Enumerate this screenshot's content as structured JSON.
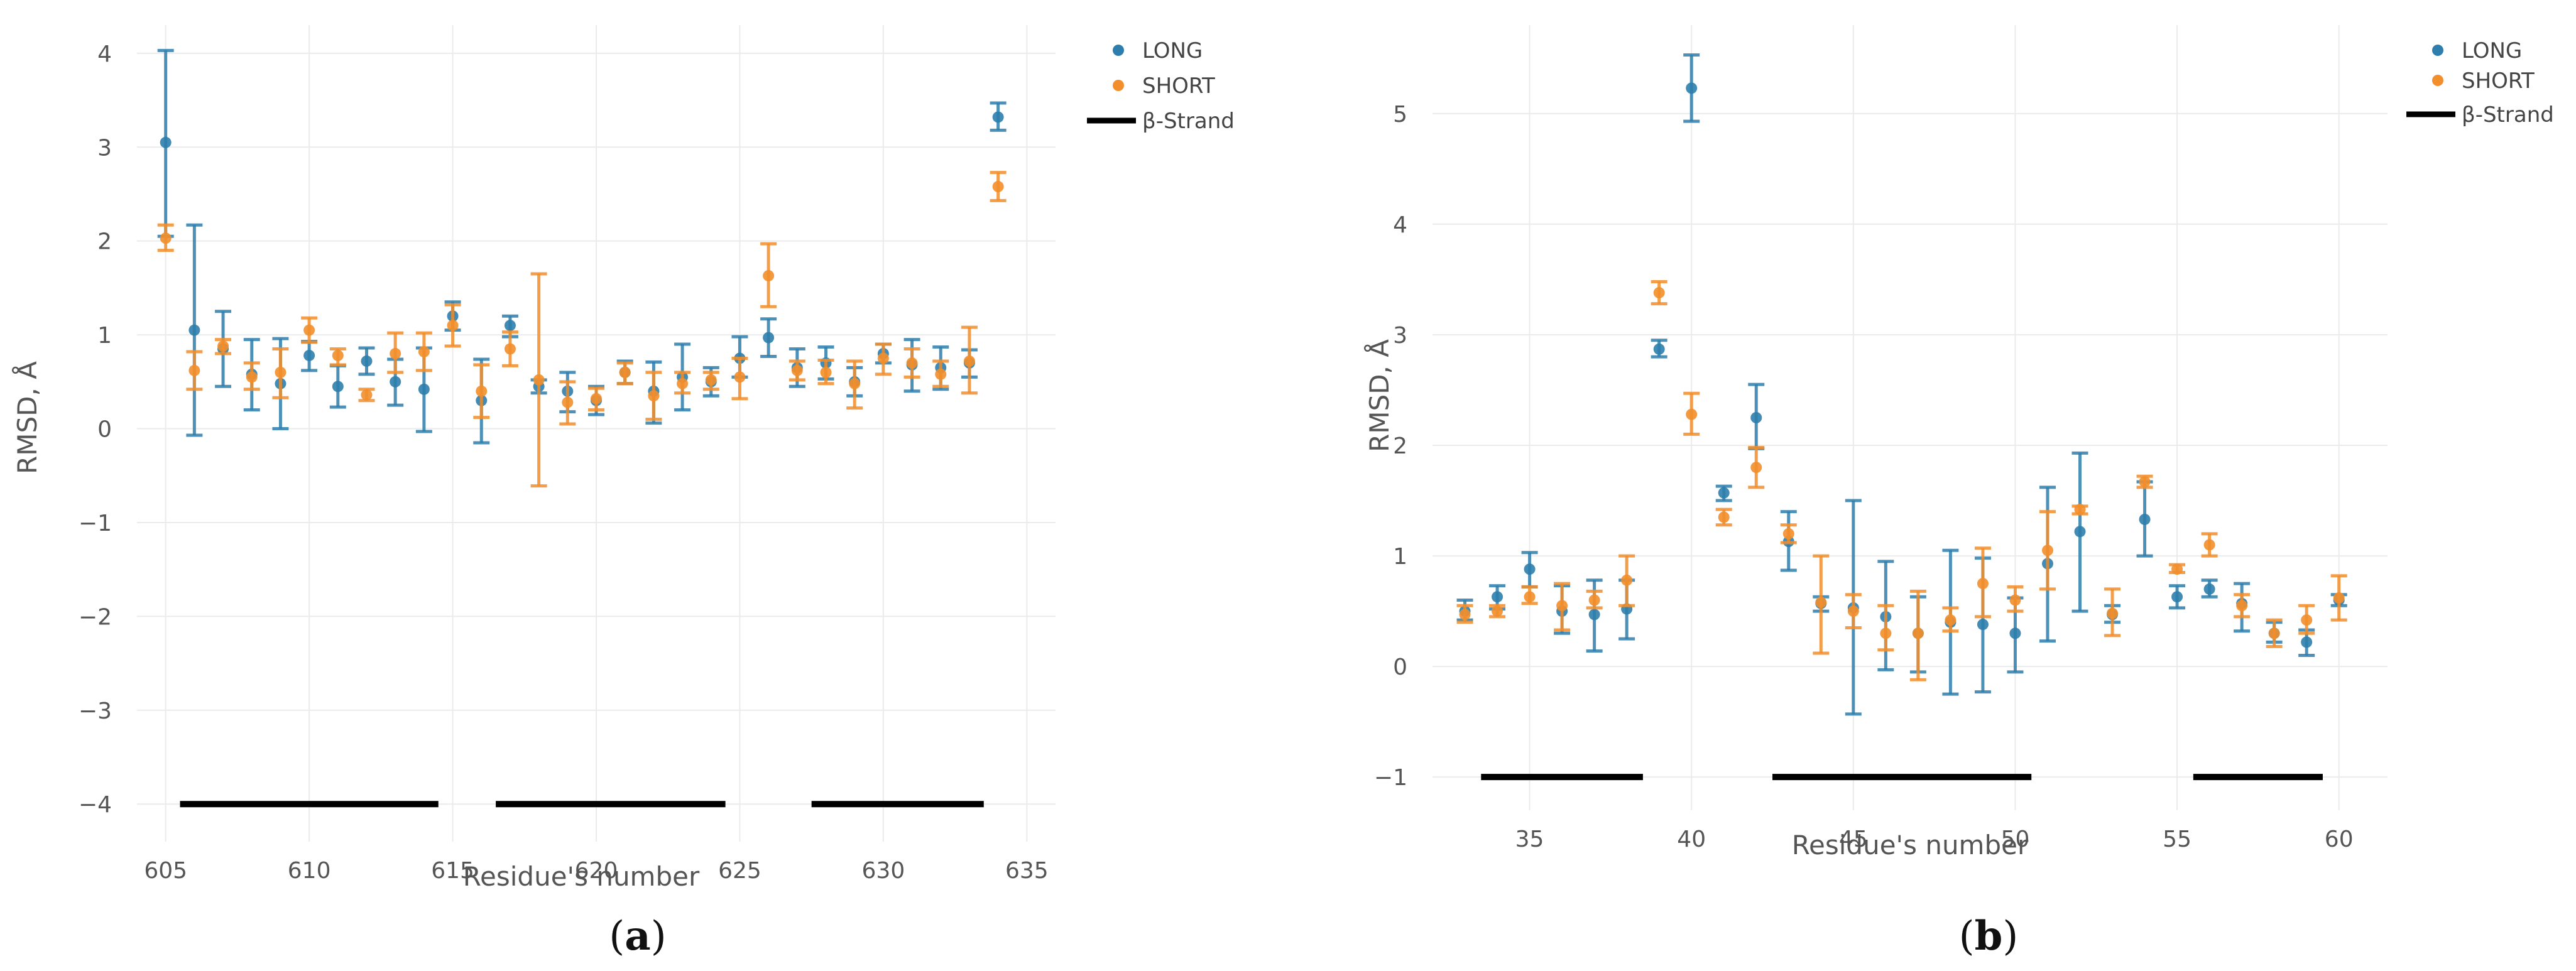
{
  "colors": {
    "long": "#2e7ead",
    "short": "#f28e2b",
    "strand": "#000000"
  },
  "chart_data": [
    {
      "type": "scatter",
      "panel_label": "(a)",
      "panel_letter": "a",
      "xlabel": "Residue's number",
      "ylabel": "RMSD, Å",
      "xlim": [
        604,
        636
      ],
      "ylim": [
        -4.4,
        4.3
      ],
      "xticks": [
        605,
        610,
        615,
        620,
        625,
        630,
        635
      ],
      "yticks": [
        -4,
        -3,
        -2,
        -1,
        0,
        1,
        2,
        3,
        4
      ],
      "legend": [
        "LONG",
        "SHORT",
        "β-Strand"
      ],
      "legend_position": "top-right-outside",
      "series": [
        {
          "name": "LONG",
          "points": [
            {
              "x": 605,
              "y": 3.05,
              "lo": 2.05,
              "hi": 4.03
            },
            {
              "x": 606,
              "y": 1.05,
              "lo": -0.07,
              "hi": 2.17
            },
            {
              "x": 607,
              "y": 0.85,
              "lo": 0.45,
              "hi": 1.25
            },
            {
              "x": 608,
              "y": 0.58,
              "lo": 0.2,
              "hi": 0.95
            },
            {
              "x": 609,
              "y": 0.48,
              "lo": 0.0,
              "hi": 0.96
            },
            {
              "x": 610,
              "y": 0.78,
              "lo": 0.62,
              "hi": 0.93
            },
            {
              "x": 611,
              "y": 0.45,
              "lo": 0.23,
              "hi": 0.67
            },
            {
              "x": 612,
              "y": 0.72,
              "lo": 0.58,
              "hi": 0.86
            },
            {
              "x": 613,
              "y": 0.5,
              "lo": 0.25,
              "hi": 0.74
            },
            {
              "x": 614,
              "y": 0.42,
              "lo": -0.03,
              "hi": 0.86
            },
            {
              "x": 615,
              "y": 1.2,
              "lo": 1.05,
              "hi": 1.35
            },
            {
              "x": 616,
              "y": 0.3,
              "lo": -0.15,
              "hi": 0.74
            },
            {
              "x": 617,
              "y": 1.1,
              "lo": 0.98,
              "hi": 1.2
            },
            {
              "x": 618,
              "y": 0.45,
              "lo": 0.38,
              "hi": 0.52
            },
            {
              "x": 619,
              "y": 0.4,
              "lo": 0.18,
              "hi": 0.6
            },
            {
              "x": 620,
              "y": 0.3,
              "lo": 0.15,
              "hi": 0.45
            },
            {
              "x": 621,
              "y": 0.6,
              "lo": 0.48,
              "hi": 0.72
            },
            {
              "x": 622,
              "y": 0.4,
              "lo": 0.06,
              "hi": 0.71
            },
            {
              "x": 623,
              "y": 0.55,
              "lo": 0.2,
              "hi": 0.9
            },
            {
              "x": 624,
              "y": 0.5,
              "lo": 0.35,
              "hi": 0.65
            },
            {
              "x": 625,
              "y": 0.75,
              "lo": 0.55,
              "hi": 0.98
            },
            {
              "x": 626,
              "y": 0.97,
              "lo": 0.77,
              "hi": 1.17
            },
            {
              "x": 627,
              "y": 0.65,
              "lo": 0.45,
              "hi": 0.85
            },
            {
              "x": 628,
              "y": 0.7,
              "lo": 0.53,
              "hi": 0.87
            },
            {
              "x": 629,
              "y": 0.5,
              "lo": 0.35,
              "hi": 0.65
            },
            {
              "x": 630,
              "y": 0.8,
              "lo": 0.7,
              "hi": 0.9
            },
            {
              "x": 631,
              "y": 0.68,
              "lo": 0.4,
              "hi": 0.95
            },
            {
              "x": 632,
              "y": 0.65,
              "lo": 0.42,
              "hi": 0.87
            },
            {
              "x": 633,
              "y": 0.7,
              "lo": 0.55,
              "hi": 0.84
            },
            {
              "x": 634,
              "y": 3.32,
              "lo": 3.18,
              "hi": 3.47
            }
          ]
        },
        {
          "name": "SHORT",
          "points": [
            {
              "x": 605,
              "y": 2.03,
              "lo": 1.9,
              "hi": 2.17
            },
            {
              "x": 606,
              "y": 0.62,
              "lo": 0.42,
              "hi": 0.82
            },
            {
              "x": 607,
              "y": 0.88,
              "lo": 0.8,
              "hi": 0.95
            },
            {
              "x": 608,
              "y": 0.55,
              "lo": 0.42,
              "hi": 0.7
            },
            {
              "x": 609,
              "y": 0.6,
              "lo": 0.33,
              "hi": 0.85
            },
            {
              "x": 610,
              "y": 1.05,
              "lo": 0.92,
              "hi": 1.18
            },
            {
              "x": 611,
              "y": 0.78,
              "lo": 0.68,
              "hi": 0.85
            },
            {
              "x": 612,
              "y": 0.36,
              "lo": 0.3,
              "hi": 0.42
            },
            {
              "x": 613,
              "y": 0.8,
              "lo": 0.6,
              "hi": 1.02
            },
            {
              "x": 614,
              "y": 0.82,
              "lo": 0.62,
              "hi": 1.02
            },
            {
              "x": 615,
              "y": 1.1,
              "lo": 0.88,
              "hi": 1.32
            },
            {
              "x": 616,
              "y": 0.4,
              "lo": 0.12,
              "hi": 0.68
            },
            {
              "x": 617,
              "y": 0.85,
              "lo": 0.67,
              "hi": 1.03
            },
            {
              "x": 618,
              "y": 0.52,
              "lo": -0.61,
              "hi": 1.65
            },
            {
              "x": 619,
              "y": 0.28,
              "lo": 0.05,
              "hi": 0.5
            },
            {
              "x": 620,
              "y": 0.32,
              "lo": 0.2,
              "hi": 0.43
            },
            {
              "x": 621,
              "y": 0.6,
              "lo": 0.48,
              "hi": 0.7
            },
            {
              "x": 622,
              "y": 0.35,
              "lo": 0.1,
              "hi": 0.6
            },
            {
              "x": 623,
              "y": 0.48,
              "lo": 0.38,
              "hi": 0.6
            },
            {
              "x": 624,
              "y": 0.52,
              "lo": 0.42,
              "hi": 0.6
            },
            {
              "x": 625,
              "y": 0.55,
              "lo": 0.32,
              "hi": 0.75
            },
            {
              "x": 626,
              "y": 1.63,
              "lo": 1.3,
              "hi": 1.97
            },
            {
              "x": 627,
              "y": 0.62,
              "lo": 0.52,
              "hi": 0.72
            },
            {
              "x": 628,
              "y": 0.6,
              "lo": 0.48,
              "hi": 0.73
            },
            {
              "x": 629,
              "y": 0.48,
              "lo": 0.22,
              "hi": 0.72
            },
            {
              "x": 630,
              "y": 0.75,
              "lo": 0.58,
              "hi": 0.9
            },
            {
              "x": 631,
              "y": 0.7,
              "lo": 0.55,
              "hi": 0.85
            },
            {
              "x": 632,
              "y": 0.58,
              "lo": 0.45,
              "hi": 0.72
            },
            {
              "x": 633,
              "y": 0.72,
              "lo": 0.38,
              "hi": 1.08
            },
            {
              "x": 634,
              "y": 2.58,
              "lo": 2.43,
              "hi": 2.73
            }
          ]
        }
      ],
      "strands": [
        [
          605.5,
          614.5
        ],
        [
          616.5,
          624.5
        ],
        [
          627.5,
          633.5
        ]
      ],
      "strand_y": -4
    },
    {
      "type": "scatter",
      "panel_label": "(b)",
      "panel_letter": "b",
      "xlabel": "Residue's number",
      "ylabel": "RMSD, Å",
      "xlim": [
        32,
        61.5
      ],
      "ylim": [
        -1.3,
        5.8
      ],
      "xticks": [
        35,
        40,
        45,
        50,
        55,
        60
      ],
      "yticks": [
        -1,
        0,
        1,
        2,
        3,
        4,
        5
      ],
      "legend": [
        "LONG",
        "SHORT",
        "β-Strand"
      ],
      "legend_position": "top-right-outside",
      "series": [
        {
          "name": "LONG",
          "points": [
            {
              "x": 33,
              "y": 0.5,
              "lo": 0.42,
              "hi": 0.6
            },
            {
              "x": 34,
              "y": 0.63,
              "lo": 0.52,
              "hi": 0.73
            },
            {
              "x": 35,
              "y": 0.88,
              "lo": 0.72,
              "hi": 1.03
            },
            {
              "x": 36,
              "y": 0.5,
              "lo": 0.3,
              "hi": 0.73
            },
            {
              "x": 37,
              "y": 0.47,
              "lo": 0.14,
              "hi": 0.78
            },
            {
              "x": 38,
              "y": 0.52,
              "lo": 0.25,
              "hi": 0.78
            },
            {
              "x": 39,
              "y": 2.87,
              "lo": 2.8,
              "hi": 2.95
            },
            {
              "x": 40,
              "y": 5.23,
              "lo": 4.93,
              "hi": 5.53
            },
            {
              "x": 41,
              "y": 1.57,
              "lo": 1.5,
              "hi": 1.63
            },
            {
              "x": 42,
              "y": 2.25,
              "lo": 1.97,
              "hi": 2.55
            },
            {
              "x": 43,
              "y": 1.13,
              "lo": 0.87,
              "hi": 1.4
            },
            {
              "x": 44,
              "y": 0.57,
              "lo": 0.5,
              "hi": 0.63
            },
            {
              "x": 45,
              "y": 0.53,
              "lo": -0.43,
              "hi": 1.5
            },
            {
              "x": 46,
              "y": 0.45,
              "lo": -0.03,
              "hi": 0.95
            },
            {
              "x": 47,
              "y": 0.3,
              "lo": -0.05,
              "hi": 0.63
            },
            {
              "x": 48,
              "y": 0.4,
              "lo": -0.25,
              "hi": 1.05
            },
            {
              "x": 49,
              "y": 0.38,
              "lo": -0.23,
              "hi": 0.98
            },
            {
              "x": 50,
              "y": 0.3,
              "lo": -0.05,
              "hi": 0.62
            },
            {
              "x": 51,
              "y": 0.93,
              "lo": 0.23,
              "hi": 1.62
            },
            {
              "x": 52,
              "y": 1.22,
              "lo": 0.5,
              "hi": 1.93
            },
            {
              "x": 53,
              "y": 0.47,
              "lo": 0.4,
              "hi": 0.55
            },
            {
              "x": 54,
              "y": 1.33,
              "lo": 1.0,
              "hi": 1.67
            },
            {
              "x": 55,
              "y": 0.63,
              "lo": 0.53,
              "hi": 0.73
            },
            {
              "x": 56,
              "y": 0.7,
              "lo": 0.63,
              "hi": 0.78
            },
            {
              "x": 57,
              "y": 0.57,
              "lo": 0.32,
              "hi": 0.75
            },
            {
              "x": 58,
              "y": 0.3,
              "lo": 0.22,
              "hi": 0.4
            },
            {
              "x": 59,
              "y": 0.22,
              "lo": 0.1,
              "hi": 0.33
            },
            {
              "x": 60,
              "y": 0.6,
              "lo": 0.55,
              "hi": 0.65
            }
          ]
        },
        {
          "name": "SHORT",
          "points": [
            {
              "x": 33,
              "y": 0.47,
              "lo": 0.4,
              "hi": 0.55
            },
            {
              "x": 34,
              "y": 0.5,
              "lo": 0.45,
              "hi": 0.55
            },
            {
              "x": 35,
              "y": 0.63,
              "lo": 0.57,
              "hi": 0.72
            },
            {
              "x": 36,
              "y": 0.55,
              "lo": 0.33,
              "hi": 0.75
            },
            {
              "x": 37,
              "y": 0.6,
              "lo": 0.53,
              "hi": 0.68
            },
            {
              "x": 38,
              "y": 0.78,
              "lo": 0.55,
              "hi": 1.0
            },
            {
              "x": 39,
              "y": 3.38,
              "lo": 3.28,
              "hi": 3.48
            },
            {
              "x": 40,
              "y": 2.28,
              "lo": 2.1,
              "hi": 2.47
            },
            {
              "x": 41,
              "y": 1.35,
              "lo": 1.28,
              "hi": 1.42
            },
            {
              "x": 42,
              "y": 1.8,
              "lo": 1.62,
              "hi": 1.98
            },
            {
              "x": 43,
              "y": 1.2,
              "lo": 1.12,
              "hi": 1.28
            },
            {
              "x": 44,
              "y": 0.58,
              "lo": 0.12,
              "hi": 1.0
            },
            {
              "x": 45,
              "y": 0.5,
              "lo": 0.35,
              "hi": 0.65
            },
            {
              "x": 46,
              "y": 0.3,
              "lo": 0.15,
              "hi": 0.55
            },
            {
              "x": 47,
              "y": 0.3,
              "lo": -0.12,
              "hi": 0.68
            },
            {
              "x": 48,
              "y": 0.42,
              "lo": 0.32,
              "hi": 0.53
            },
            {
              "x": 49,
              "y": 0.75,
              "lo": 0.45,
              "hi": 1.07
            },
            {
              "x": 50,
              "y": 0.6,
              "lo": 0.5,
              "hi": 0.72
            },
            {
              "x": 51,
              "y": 1.05,
              "lo": 0.7,
              "hi": 1.4
            },
            {
              "x": 52,
              "y": 1.42,
              "lo": 1.38,
              "hi": 1.45
            },
            {
              "x": 53,
              "y": 0.48,
              "lo": 0.28,
              "hi": 0.7
            },
            {
              "x": 54,
              "y": 1.67,
              "lo": 1.62,
              "hi": 1.72
            },
            {
              "x": 55,
              "y": 0.88,
              "lo": 0.85,
              "hi": 0.92
            },
            {
              "x": 56,
              "y": 1.1,
              "lo": 1.0,
              "hi": 1.2
            },
            {
              "x": 57,
              "y": 0.55,
              "lo": 0.45,
              "hi": 0.65
            },
            {
              "x": 58,
              "y": 0.3,
              "lo": 0.18,
              "hi": 0.42
            },
            {
              "x": 59,
              "y": 0.42,
              "lo": 0.3,
              "hi": 0.55
            },
            {
              "x": 60,
              "y": 0.62,
              "lo": 0.42,
              "hi": 0.82
            }
          ]
        }
      ],
      "strands": [
        [
          33.5,
          38.5
        ],
        [
          42.5,
          50.5
        ],
        [
          55.5,
          59.5
        ]
      ],
      "strand_y": -1
    }
  ]
}
